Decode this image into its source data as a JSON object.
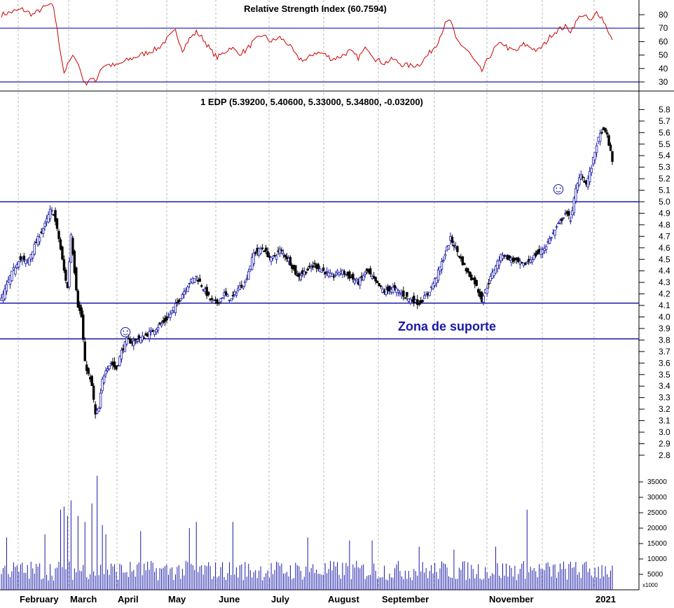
{
  "rsi_panel": {
    "title": "Relative Strength Index (60.7594)",
    "yticks": [
      "80",
      "70",
      "60",
      "50",
      "40",
      "30"
    ],
    "tick_values": [
      80,
      70,
      60,
      50,
      40,
      30
    ],
    "reference_lines": [
      70,
      30
    ],
    "line_color": "#cc0000",
    "ref_color": "#1a1aa8"
  },
  "price_panel": {
    "title": "1 EDP (5.39200, 5.40600, 5.33000, 5.34800, -0.03200)",
    "yticks": [
      "5.8",
      "5.7",
      "5.6",
      "5.5",
      "5.4",
      "5.3",
      "5.2",
      "5.1",
      "5.0",
      "4.9",
      "4.8",
      "4.7",
      "4.6",
      "4.5",
      "4.4",
      "4.3",
      "4.2",
      "4.1",
      "4.0",
      "3.9",
      "3.8",
      "3.7",
      "3.6",
      "3.5",
      "3.4",
      "3.3",
      "3.2",
      "3.1",
      "3.0",
      "2.9",
      "2.8"
    ],
    "tick_values": [
      5.8,
      5.7,
      5.6,
      5.5,
      5.4,
      5.3,
      5.2,
      5.1,
      5.0,
      4.9,
      4.8,
      4.7,
      4.6,
      4.5,
      4.4,
      4.3,
      4.2,
      4.1,
      4.0,
      3.9,
      3.8,
      3.7,
      3.6,
      3.5,
      3.4,
      3.3,
      3.2,
      3.1,
      3.0,
      2.9,
      2.8
    ],
    "support_lines": [
      5.0,
      4.12,
      3.81
    ],
    "annotation": "Zona de suporte",
    "smiley": "☺",
    "up_color": "#1a1aa8",
    "down_color": "#000000"
  },
  "volume_panel": {
    "yticks": [
      "35000",
      "30000",
      "25000",
      "20000",
      "15000",
      "10000",
      "5000"
    ],
    "tick_values": [
      35000,
      30000,
      25000,
      20000,
      15000,
      10000,
      5000
    ],
    "unit_label": "x1000",
    "bar_color": "#1a1aa8"
  },
  "x_axis": {
    "months": [
      "February",
      "March",
      "April",
      "May",
      "June",
      "July",
      "August",
      "September",
      "November",
      "2021"
    ]
  },
  "chart_data": {
    "type": "candlestick",
    "title": "1 EDP (5.39200, 5.40600, 5.33000, 5.34800, -0.03200)",
    "last_bar": {
      "open": 5.392,
      "high": 5.406,
      "low": 5.33,
      "close": 5.348,
      "change": -0.032
    },
    "ylim": [
      2.7,
      5.85
    ],
    "months": [
      "February",
      "March",
      "April",
      "May",
      "June",
      "July",
      "August",
      "September",
      "November",
      "2021"
    ],
    "close_anchors": [
      [
        0,
        4.15
      ],
      [
        5,
        4.35
      ],
      [
        10,
        4.5
      ],
      [
        15,
        4.48
      ],
      [
        20,
        4.65
      ],
      [
        25,
        4.8
      ],
      [
        28,
        4.92
      ],
      [
        30,
        4.9
      ],
      [
        33,
        4.68
      ],
      [
        36,
        4.4
      ],
      [
        38,
        4.25
      ],
      [
        40,
        4.72
      ],
      [
        42,
        4.4
      ],
      [
        44,
        4.1
      ],
      [
        46,
        4.0
      ],
      [
        48,
        3.6
      ],
      [
        50,
        3.5
      ],
      [
        52,
        3.4
      ],
      [
        54,
        3.15
      ],
      [
        56,
        3.2
      ],
      [
        58,
        3.45
      ],
      [
        60,
        3.55
      ],
      [
        63,
        3.6
      ],
      [
        66,
        3.55
      ],
      [
        69,
        3.7
      ],
      [
        72,
        3.8
      ],
      [
        75,
        3.78
      ],
      [
        78,
        3.8
      ],
      [
        81,
        3.82
      ],
      [
        84,
        3.85
      ],
      [
        87,
        3.88
      ],
      [
        90,
        3.92
      ],
      [
        93,
        3.95
      ],
      [
        96,
        4.0
      ],
      [
        100,
        4.1
      ],
      [
        104,
        4.2
      ],
      [
        108,
        4.3
      ],
      [
        112,
        4.35
      ],
      [
        116,
        4.25
      ],
      [
        120,
        4.15
      ],
      [
        124,
        4.12
      ],
      [
        128,
        4.2
      ],
      [
        132,
        4.15
      ],
      [
        136,
        4.25
      ],
      [
        140,
        4.3
      ],
      [
        145,
        4.55
      ],
      [
        150,
        4.6
      ],
      [
        155,
        4.5
      ],
      [
        160,
        4.58
      ],
      [
        165,
        4.5
      ],
      [
        170,
        4.35
      ],
      [
        175,
        4.4
      ],
      [
        180,
        4.45
      ],
      [
        185,
        4.4
      ],
      [
        190,
        4.35
      ],
      [
        195,
        4.4
      ],
      [
        200,
        4.35
      ],
      [
        205,
        4.3
      ],
      [
        210,
        4.4
      ],
      [
        215,
        4.3
      ],
      [
        220,
        4.22
      ],
      [
        225,
        4.25
      ],
      [
        230,
        4.2
      ],
      [
        235,
        4.15
      ],
      [
        240,
        4.12
      ],
      [
        245,
        4.2
      ],
      [
        250,
        4.35
      ],
      [
        255,
        4.55
      ],
      [
        258,
        4.68
      ],
      [
        261,
        4.6
      ],
      [
        264,
        4.5
      ],
      [
        268,
        4.38
      ],
      [
        272,
        4.3
      ],
      [
        276,
        4.15
      ],
      [
        280,
        4.3
      ],
      [
        284,
        4.45
      ],
      [
        288,
        4.55
      ],
      [
        292,
        4.5
      ],
      [
        296,
        4.48
      ],
      [
        300,
        4.45
      ],
      [
        304,
        4.5
      ],
      [
        308,
        4.55
      ],
      [
        312,
        4.6
      ],
      [
        316,
        4.7
      ],
      [
        320,
        4.8
      ],
      [
        324,
        4.9
      ],
      [
        327,
        4.85
      ],
      [
        330,
        5.1
      ],
      [
        333,
        5.25
      ],
      [
        336,
        5.15
      ],
      [
        339,
        5.3
      ],
      [
        342,
        5.5
      ],
      [
        345,
        5.62
      ],
      [
        348,
        5.58
      ],
      [
        351,
        5.348
      ]
    ],
    "rsi_anchors": [
      [
        0,
        80
      ],
      [
        6,
        82
      ],
      [
        12,
        84
      ],
      [
        18,
        80
      ],
      [
        24,
        85
      ],
      [
        27,
        87
      ],
      [
        30,
        86
      ],
      [
        33,
        60
      ],
      [
        36,
        37
      ],
      [
        39,
        45
      ],
      [
        42,
        50
      ],
      [
        45,
        40
      ],
      [
        48,
        28
      ],
      [
        51,
        33
      ],
      [
        54,
        30
      ],
      [
        57,
        40
      ],
      [
        60,
        43
      ],
      [
        66,
        42
      ],
      [
        72,
        46
      ],
      [
        78,
        49
      ],
      [
        84,
        52
      ],
      [
        90,
        55
      ],
      [
        96,
        63
      ],
      [
        100,
        68
      ],
      [
        104,
        54
      ],
      [
        108,
        62
      ],
      [
        112,
        67
      ],
      [
        116,
        62
      ],
      [
        120,
        54
      ],
      [
        124,
        48
      ],
      [
        128,
        52
      ],
      [
        132,
        56
      ],
      [
        136,
        51
      ],
      [
        140,
        53
      ],
      [
        145,
        60
      ],
      [
        150,
        65
      ],
      [
        155,
        60
      ],
      [
        160,
        63
      ],
      [
        165,
        58
      ],
      [
        170,
        48
      ],
      [
        175,
        46
      ],
      [
        180,
        52
      ],
      [
        185,
        51
      ],
      [
        190,
        47
      ],
      [
        195,
        49
      ],
      [
        200,
        53
      ],
      [
        205,
        48
      ],
      [
        210,
        56
      ],
      [
        215,
        47
      ],
      [
        220,
        44
      ],
      [
        225,
        47
      ],
      [
        230,
        43
      ],
      [
        235,
        42
      ],
      [
        240,
        43
      ],
      [
        245,
        50
      ],
      [
        250,
        58
      ],
      [
        255,
        73
      ],
      [
        258,
        76
      ],
      [
        261,
        62
      ],
      [
        264,
        58
      ],
      [
        268,
        53
      ],
      [
        272,
        45
      ],
      [
        276,
        38
      ],
      [
        280,
        48
      ],
      [
        284,
        56
      ],
      [
        288,
        59
      ],
      [
        292,
        54
      ],
      [
        296,
        53
      ],
      [
        300,
        58
      ],
      [
        304,
        56
      ],
      [
        308,
        53
      ],
      [
        312,
        58
      ],
      [
        316,
        65
      ],
      [
        320,
        69
      ],
      [
        324,
        71
      ],
      [
        327,
        68
      ],
      [
        330,
        74
      ],
      [
        333,
        80
      ],
      [
        336,
        78
      ],
      [
        339,
        75
      ],
      [
        342,
        82
      ],
      [
        345,
        78
      ],
      [
        348,
        70
      ],
      [
        351,
        60.76
      ]
    ],
    "volume_spikes": [
      [
        3,
        17000
      ],
      [
        25,
        18000
      ],
      [
        34,
        26000
      ],
      [
        36,
        27000
      ],
      [
        38,
        24000
      ],
      [
        40,
        29000
      ],
      [
        44,
        24000
      ],
      [
        48,
        22000
      ],
      [
        52,
        28000
      ],
      [
        55,
        37000
      ],
      [
        58,
        21000
      ],
      [
        60,
        18000
      ],
      [
        80,
        19000
      ],
      [
        108,
        20000
      ],
      [
        112,
        22000
      ],
      [
        133,
        22000
      ],
      [
        176,
        17000
      ],
      [
        200,
        16000
      ],
      [
        213,
        16000
      ],
      [
        240,
        14000
      ],
      [
        260,
        13000
      ],
      [
        284,
        14000
      ],
      [
        302,
        26000
      ],
      [
        330,
        9000
      ],
      [
        345,
        8000
      ]
    ]
  }
}
